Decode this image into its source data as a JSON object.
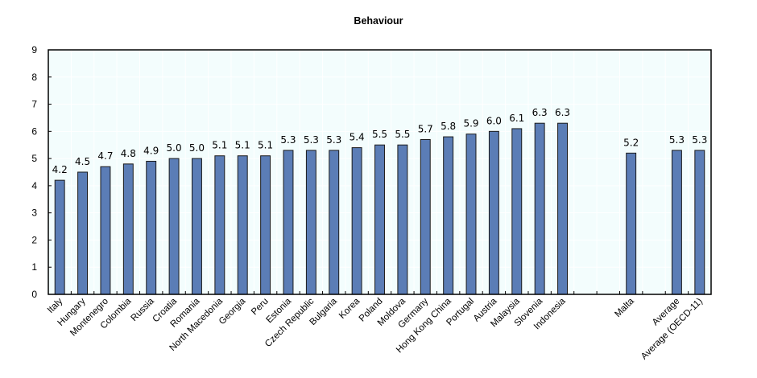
{
  "chart_data": {
    "type": "bar",
    "title": "Behaviour",
    "xlabel": "",
    "ylabel": "",
    "ylim": [
      0,
      9
    ],
    "yticks": [
      "0",
      "1",
      "2",
      "3",
      "4",
      "5",
      "6",
      "7",
      "8",
      "9"
    ],
    "grid": true,
    "legend": "none",
    "categories": [
      "Italy",
      "Hungary",
      "Montenegro",
      "Colombia",
      "Russia",
      "Croatia",
      "Romania",
      "North Macedonia",
      "Georgia",
      "Peru",
      "Estonia",
      "Czech Republic",
      "Bulgaria",
      "Korea",
      "Poland",
      "Moldova",
      "Germany",
      "Hong Kong China",
      "Portugal",
      "Austria",
      "Malaysia",
      "Slovenia",
      "Indonesia",
      "",
      "Malta",
      "",
      "Average",
      "Average (OECD-11)"
    ],
    "values": [
      4.2,
      4.5,
      4.7,
      4.8,
      4.9,
      5.0,
      5.0,
      5.1,
      5.1,
      5.1,
      5.3,
      5.3,
      5.3,
      5.4,
      5.5,
      5.5,
      5.7,
      5.8,
      5.9,
      6.0,
      6.1,
      6.3,
      6.3,
      null,
      5.2,
      null,
      5.3,
      5.3
    ],
    "value_labels": [
      "4.2",
      "4.5",
      "4.7",
      "4.8",
      "4.9",
      "5.0",
      "5.0",
      "5.1",
      "5.1",
      "5.1",
      "5.3",
      "5.3",
      "5.3",
      "5.4",
      "5.5",
      "5.5",
      "5.7",
      "5.8",
      "5.9",
      "6.0",
      "6.1",
      "6.3",
      "6.3",
      "",
      "5.2",
      "",
      "5.3",
      "5.3"
    ],
    "colors": {
      "bar_fill": "#5b7db6",
      "bar_stroke": "#1a1a1a",
      "plot_background": "#f3fdfd",
      "grid": "#ffffff",
      "axis": "#000000"
    }
  }
}
